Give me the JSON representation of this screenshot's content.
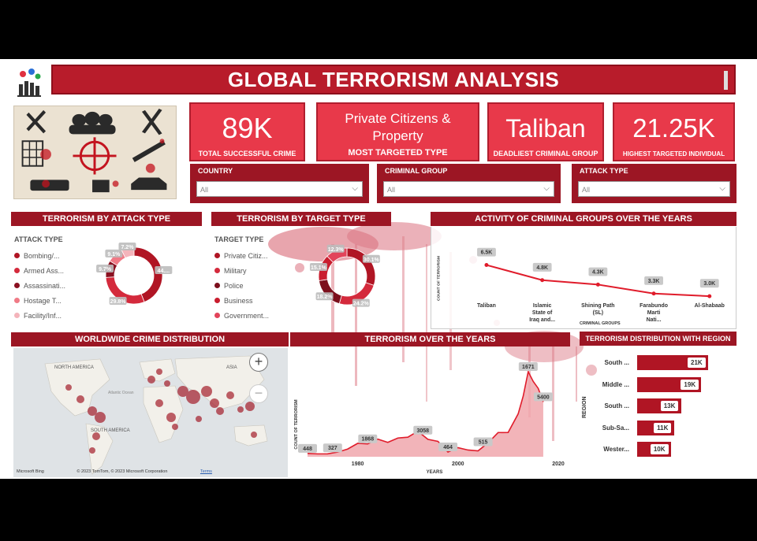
{
  "title": "GLOBAL TERRORISM ANALYSIS",
  "kpis": [
    {
      "value": "89K",
      "label": "TOTAL SUCCESSFUL CRIME"
    },
    {
      "value": "Private Citizens & Property",
      "label": "MOST TARGETED TYPE"
    },
    {
      "value": "Taliban",
      "label": "DEADLIEST CRIMINAL GROUP"
    },
    {
      "value": "21.25K",
      "label": "HIGHEST TARGETED INDIVIDUAL"
    }
  ],
  "filters": [
    {
      "label": "COUNTRY",
      "value": "All"
    },
    {
      "label": "CRIMINAL GROUP",
      "value": "All"
    },
    {
      "label": "ATTACK TYPE",
      "value": "All"
    }
  ],
  "attack_type": {
    "header": "TERRORISM BY ATTACK TYPE",
    "legend_title": "ATTACK TYPE",
    "items": [
      "Bombing/...",
      "Armed Ass...",
      "Assassinati...",
      "Hostage T...",
      "Facility/Inf..."
    ]
  },
  "target_type": {
    "header": "TERRORISM BY TARGET TYPE",
    "legend_title": "TARGET TYPE",
    "items": [
      "Private Citiz...",
      "Military",
      "Police",
      "Business",
      "Government..."
    ]
  },
  "groups": {
    "header": "ACTIVITY OF CRIMINAL GROUPS OVER THE YEARS",
    "ylabel": "COUNT OF TERRORISM",
    "xlabel": "CRIMINAL GROUPS"
  },
  "map": {
    "header": "WORLDWIDE CRIME DISTRIBUTION",
    "labels": [
      "NORTH AMERICA",
      "SOUTH AMERICA",
      "ASIA",
      "Atlantic Ocean"
    ],
    "zoom_in": "+",
    "zoom_out": "−",
    "brand": "Microsoft Bing",
    "copyright": "© 2023 TomTom, © 2023 Microsoft Corporation",
    "terms": "Terms"
  },
  "years": {
    "header": "TERRORISM OVER THE YEARS",
    "ylabel": "COUNT OF TERRORISM",
    "xlabel": "YEARS"
  },
  "region": {
    "header": "TERRORISM DISTRIBUTION WITH REGION",
    "ylabel": "REGION"
  },
  "colors": {
    "accent": "#b81c2b",
    "dark_red": "#9c1624",
    "kpi_red": "#e8394a",
    "line_red": "#e01c2b"
  },
  "chart_data": [
    {
      "type": "pie",
      "name": "attack_type",
      "labels": [
        "Bombing/...",
        "Armed Ass...",
        "Assassinati...",
        "Hostage T...",
        "Facility/Inf..."
      ],
      "values": [
        44.0,
        29.8,
        9.7,
        9.1,
        7.2
      ],
      "data_labels": [
        "44....",
        "29.8%",
        "9.7%",
        "9.1%",
        "7.2%"
      ],
      "colors": [
        "#b01524",
        "#d42a3c",
        "#8a1020",
        "#f07a86",
        "#f4b4bb"
      ]
    },
    {
      "type": "pie",
      "name": "target_type",
      "labels": [
        "Private Citiz...",
        "Military",
        "Police",
        "Business",
        "Government..."
      ],
      "values": [
        30.1,
        24.2,
        18.2,
        15.1,
        12.3
      ],
      "data_labels": [
        "30.1%",
        "24.2%",
        "18.2%",
        "15.1%",
        "12.3%"
      ],
      "colors": [
        "#b01524",
        "#d42a3c",
        "#7c0f1c",
        "#c91d2e",
        "#e2445a"
      ]
    },
    {
      "type": "line",
      "name": "criminal_groups",
      "categories": [
        "Taliban",
        "Islamic State of Iraq and...",
        "Shining Path (SL)",
        "Farabundo Marti Nati...",
        "Al-Shabaab"
      ],
      "values": [
        6500,
        4800,
        4300,
        3300,
        3000
      ],
      "data_labels": [
        "6.5K",
        "4.8K",
        "4.3K",
        "3.3K",
        "3.0K"
      ],
      "xlabel": "CRIMINAL GROUPS",
      "ylabel": "COUNT OF TERRORISM"
    },
    {
      "type": "area",
      "name": "over_the_years",
      "x": [
        1970,
        1972,
        1974,
        1976,
        1978,
        1980,
        1982,
        1984,
        1986,
        1988,
        1990,
        1992,
        1994,
        1996,
        1998,
        2000,
        2002,
        2004,
        2006,
        2008,
        2010,
        2012,
        2013,
        2014,
        2015,
        2016,
        2017
      ],
      "y": [
        651,
        568,
        581,
        923,
        1526,
        2662,
        2544,
        3495,
        2860,
        3721,
        3887,
        5071,
        3456,
        3058,
        934,
        1814,
        1333,
        1166,
        2758,
        4805,
        4826,
        8522,
        12036,
        16903,
        14965,
        13587,
        10900
      ],
      "point_labels": [
        {
          "x": 1970,
          "label": "448"
        },
        {
          "x": 1975,
          "label": "327"
        },
        {
          "x": 1982,
          "label": "1868"
        },
        {
          "x": 1993,
          "label": "3058"
        },
        {
          "x": 1998,
          "label": "464"
        },
        {
          "x": 2005,
          "label": "515"
        },
        {
          "x": 2014,
          "label": "1671"
        },
        {
          "x": 2017,
          "label": "5400"
        }
      ],
      "x_ticks": [
        "1980",
        "2000",
        "2020"
      ],
      "xlabel": "YEARS",
      "ylabel": "COUNT OF TERRORISM"
    },
    {
      "type": "bar",
      "name": "region",
      "orientation": "horizontal",
      "categories": [
        "South ...",
        "Middle ...",
        "South ...",
        "Sub-Sa...",
        "Wester..."
      ],
      "values": [
        21000,
        19000,
        13000,
        11000,
        10000
      ],
      "data_labels": [
        "21K",
        "19K",
        "13K",
        "11K",
        "10K"
      ],
      "ylabel": "REGION"
    }
  ]
}
